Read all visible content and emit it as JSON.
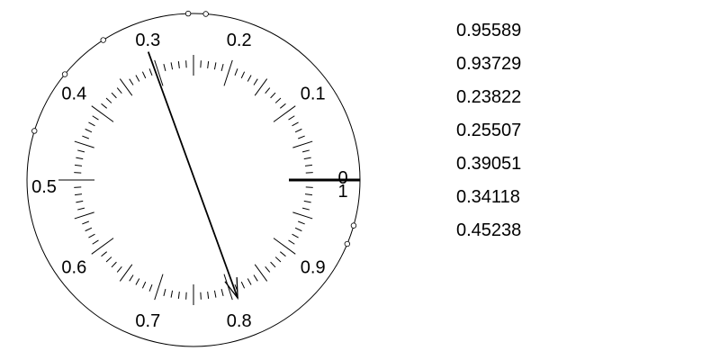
{
  "dial": {
    "scale_labels": [
      "0",
      "0.1",
      "0.2",
      "0.3",
      "0.4",
      "0.5",
      "0.6",
      "0.7",
      "0.8",
      "0.9"
    ],
    "end_label": "1",
    "arrow": {
      "from_value": 0.304,
      "to_value": 0.807
    },
    "data_points": [
      0.95589,
      0.93729,
      0.23822,
      0.25507,
      0.39051,
      0.34118,
      0.45238
    ],
    "stroke_color": "#000000"
  },
  "value_list": [
    "0.95589",
    "0.93729",
    "0.23822",
    "0.25507",
    "0.39051",
    "0.34118",
    "0.45238"
  ]
}
